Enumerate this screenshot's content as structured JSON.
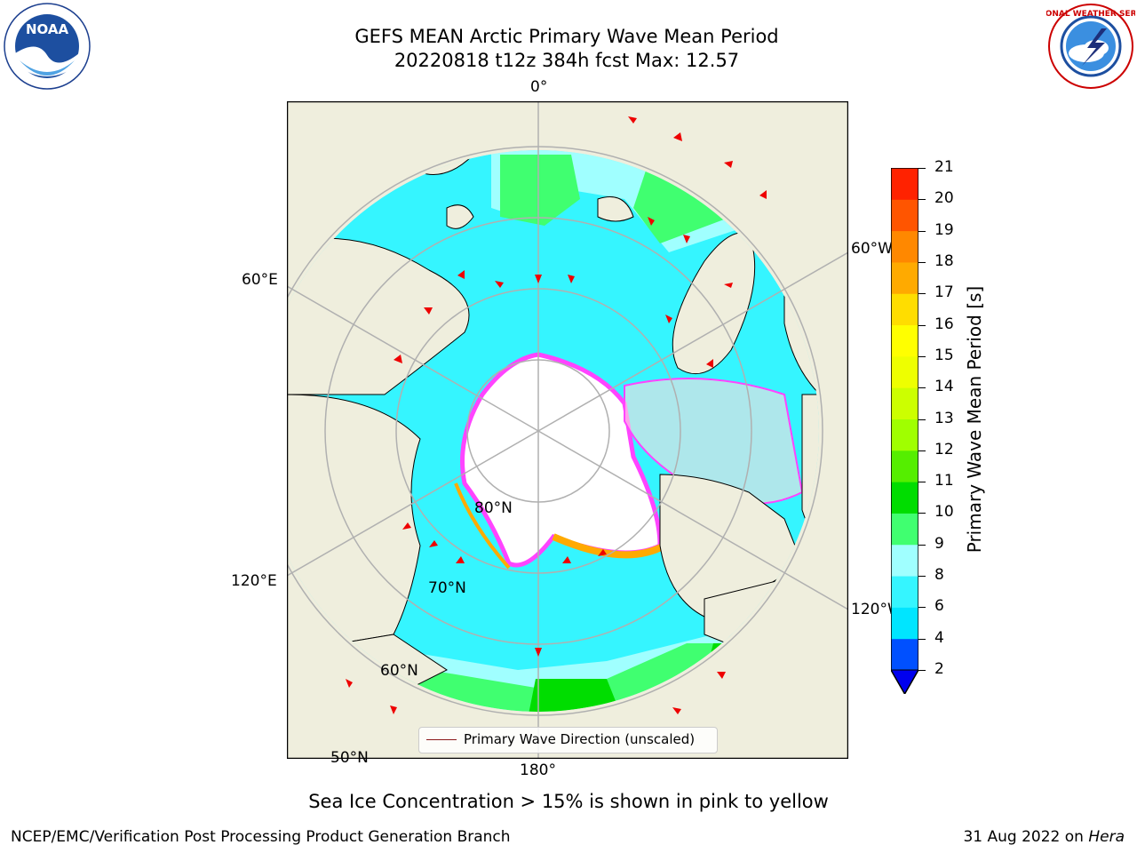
{
  "title": {
    "line1": "GEFS MEAN Arctic Primary Wave Mean Period",
    "line2": "20220818 t12z 384h fcst   Max: 12.57"
  },
  "logos": {
    "left": {
      "icon": "noaa-logo",
      "text": "NOAA",
      "ring_text": "NATIONAL OCEANIC AND ATMOSPHERIC ADMINISTRATION · U.S. DEPARTMENT OF COMMERCE"
    },
    "right": {
      "icon": "nws-logo",
      "ring_text": "NATIONAL WEATHER SERVICE"
    }
  },
  "map": {
    "longitude_labels": {
      "top": "0°",
      "right_upper": "60°W",
      "left_upper": "60°E",
      "left_lower": "120°E",
      "right_lower": "120°W",
      "bottom": "180°"
    },
    "latitude_labels": {
      "lat80": "80°N",
      "lat70": "70°N",
      "lat60": "60°N",
      "lat50": "50°N"
    },
    "colors": {
      "land": "#efeedd",
      "sea_ice": "#ffffff",
      "ice_edge": "#ff44ff",
      "grid": "#b0b0b0",
      "arrow": "#ee0000"
    }
  },
  "colorbar": {
    "label": "Primary Wave Mean Period [s]",
    "ticks": [
      "2",
      "4",
      "6",
      "8",
      "9",
      "10",
      "11",
      "12",
      "13",
      "14",
      "15",
      "16",
      "17",
      "18",
      "19",
      "20",
      "21"
    ],
    "colors": [
      "#0050ff",
      "#00e5ff",
      "#35f5ff",
      "#a0ffff",
      "#40ff70",
      "#00dd00",
      "#55ee00",
      "#a0ff00",
      "#ccff00",
      "#eeff00",
      "#ffff00",
      "#ffdd00",
      "#ffaa00",
      "#ff8800",
      "#ff5500",
      "#ff2200"
    ],
    "extend_color": "#0000ee"
  },
  "legend": {
    "label": "Primary Wave Direction (unscaled)"
  },
  "note": "Sea Ice Concentration > 15% is shown in pink to yellow",
  "footer": {
    "left": "NCEP/EMC/Verification Post Processing Product Generation Branch",
    "date": "31 Aug 2022 on",
    "machine": "Hera"
  }
}
